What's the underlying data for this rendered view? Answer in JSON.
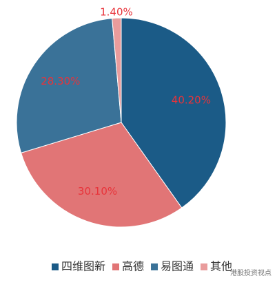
{
  "chart_data": {
    "type": "pie",
    "categories": [
      "四维图新",
      "高德",
      "易图通",
      "其他"
    ],
    "values": [
      40.2,
      30.1,
      28.3,
      1.4
    ],
    "value_labels": [
      "40.20%",
      "30.10%",
      "28.30%",
      "1.40%"
    ],
    "colors": [
      "#1b5b87",
      "#e17576",
      "#3a7298",
      "#e99c9c"
    ],
    "legend": "bottom"
  },
  "watermark": "港股投资视点"
}
